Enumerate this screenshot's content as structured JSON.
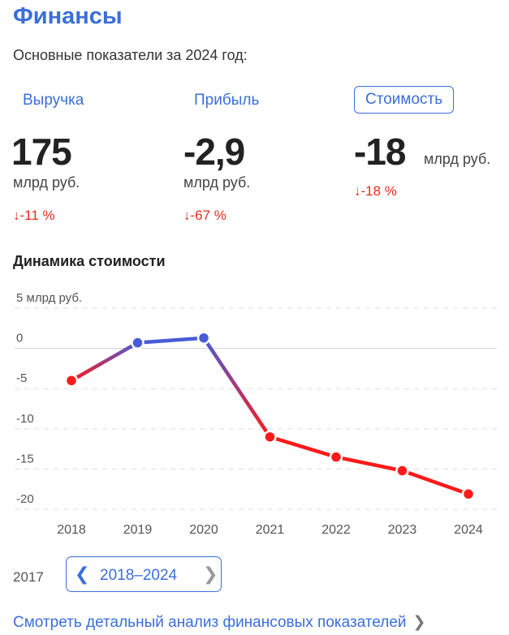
{
  "header": {
    "title": "Финансы",
    "subtitle": "Основные показатели за 2024 год:"
  },
  "tabs": [
    {
      "label": "Выручка",
      "active": false
    },
    {
      "label": "Прибыль",
      "active": false
    },
    {
      "label": "Стоимость",
      "active": true
    }
  ],
  "metrics": [
    {
      "value": "175",
      "unit": "млрд руб.",
      "delta": "↓-11 %"
    },
    {
      "value": "-2,9",
      "unit": "млрд руб.",
      "delta": "↓-67 %"
    },
    {
      "value": "-18",
      "unit": "млрд руб.",
      "delta": "↓-18 %"
    }
  ],
  "section_title": "Динамика стоимости",
  "chart_data": {
    "type": "line",
    "x": [
      "2018",
      "2019",
      "2020",
      "2021",
      "2022",
      "2023",
      "2024"
    ],
    "series": [
      {
        "values": [
          -4,
          0.7,
          1.3,
          -11,
          -13.5,
          -15.2,
          -18.1
        ]
      }
    ],
    "ylabel": "5 млрд руб.",
    "yticks": [
      {
        "value": 5,
        "label": "5 млрд руб."
      },
      {
        "value": 0,
        "label": "0"
      },
      {
        "value": -5,
        "label": "-5"
      },
      {
        "value": -10,
        "label": "-10"
      },
      {
        "value": -15,
        "label": "-15"
      },
      {
        "value": -20,
        "label": "-20"
      }
    ],
    "ylim": [
      -20,
      5
    ],
    "grid": true,
    "colors": {
      "negative": "#ff1a1a",
      "positive": "#4a5bd6"
    }
  },
  "range": {
    "start_year": "2017",
    "current": "2018–2024",
    "prev_icon": "chevron-left-icon",
    "next_icon": "chevron-right-icon"
  },
  "footer": {
    "link_text": "Смотреть детальный анализ финансовых показателей",
    "link_icon": "chevron-right-icon"
  }
}
